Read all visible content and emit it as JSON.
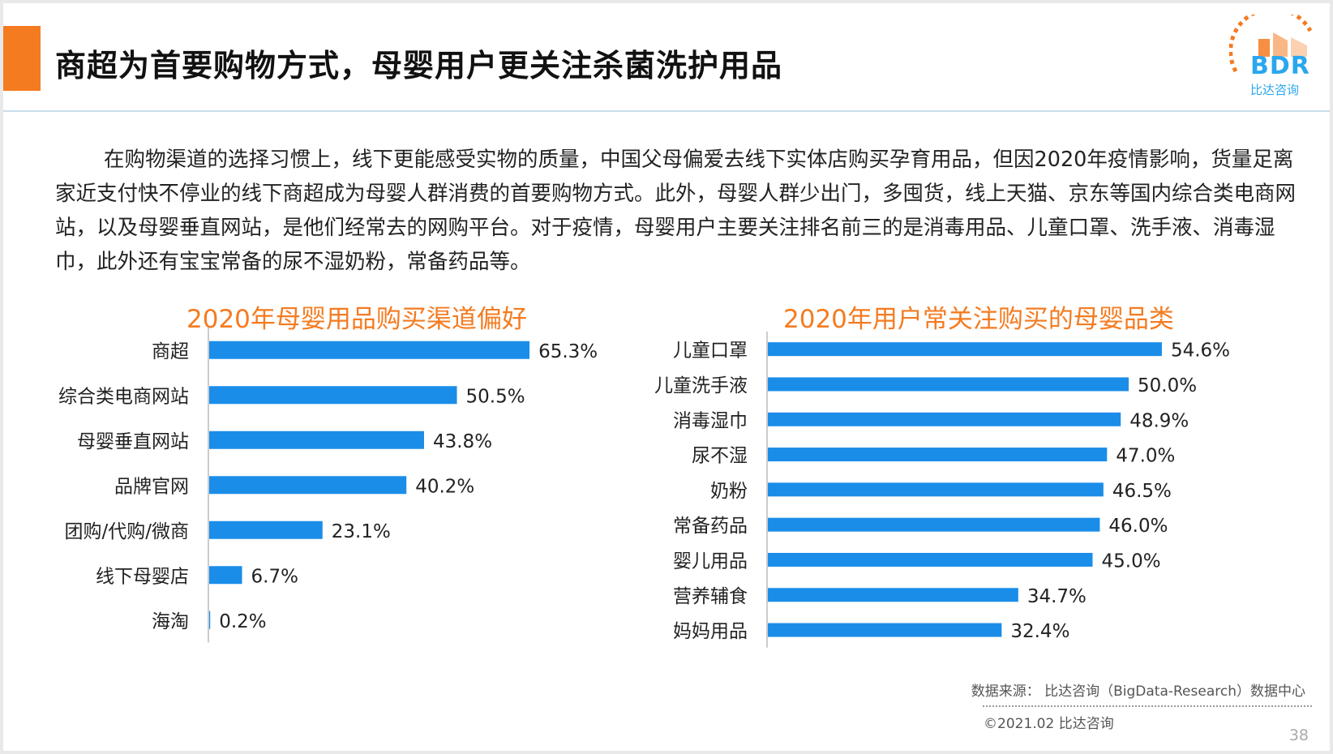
{
  "header": {
    "title": "商超为首要购物方式，母婴用户更关注杀菌洗护用品",
    "logo_text": "BDR",
    "logo_subtitle": "比达咨询"
  },
  "intro_paragraph": "在购物渠道的选择习惯上，线下更能感受实物的质量，中国父母偏爱去线下实体店购买孕育用品，但因2020年疫情影响，货量足离家近支付快不停业的线下商超成为母婴人群消费的首要购物方式。此外，母婴人群少出门，多囤货，线上天猫、京东等国内综合类电商网站，以及母婴垂直网站，是他们经常去的网购平台。对于疫情，母婴用户主要关注排名前三的是消毒用品、儿童口罩、洗手液、消毒湿巾，此外还有宝宝常备的尿不湿奶粉，常备药品等。",
  "colors": {
    "accent": "#f47b20",
    "bar": "#1a8de9",
    "logo": "#2aa7ee"
  },
  "chart_data": [
    {
      "type": "bar",
      "orientation": "horizontal",
      "title": "2020年母婴用品购买渠道偏好",
      "categories": [
        "商超",
        "综合类电商网站",
        "母婴垂直网站",
        "品牌官网",
        "团购/代购/微商",
        "线下母婴店",
        "海淘"
      ],
      "values": [
        65.3,
        50.5,
        43.8,
        40.2,
        23.1,
        6.7,
        0.2
      ],
      "labels": [
        "65.3%",
        "50.5%",
        "43.8%",
        "40.2%",
        "23.1%",
        "6.7%",
        "0.2%"
      ],
      "unit": "%",
      "xlim": [
        0,
        100
      ]
    },
    {
      "type": "bar",
      "orientation": "horizontal",
      "title": "2020年用户常关注购买的母婴品类",
      "categories": [
        "儿童口罩",
        "儿童洗手液",
        "消毒湿巾",
        "尿不湿",
        "奶粉",
        "常备药品",
        "婴儿用品",
        "营养辅食",
        "妈妈用品"
      ],
      "values": [
        54.6,
        50.0,
        48.9,
        47.0,
        46.5,
        46.0,
        45.0,
        34.7,
        32.4
      ],
      "labels": [
        "54.6%",
        "50.0%",
        "48.9%",
        "47.0%",
        "46.5%",
        "46.0%",
        "45.0%",
        "34.7%",
        "32.4%"
      ],
      "unit": "%",
      "xlim": [
        0,
        100
      ]
    }
  ],
  "footer": {
    "source": "数据来源： 比达咨询（BigData-Research）数据中心",
    "copyright": "©2021.02 比达咨询",
    "page_number": "38"
  }
}
